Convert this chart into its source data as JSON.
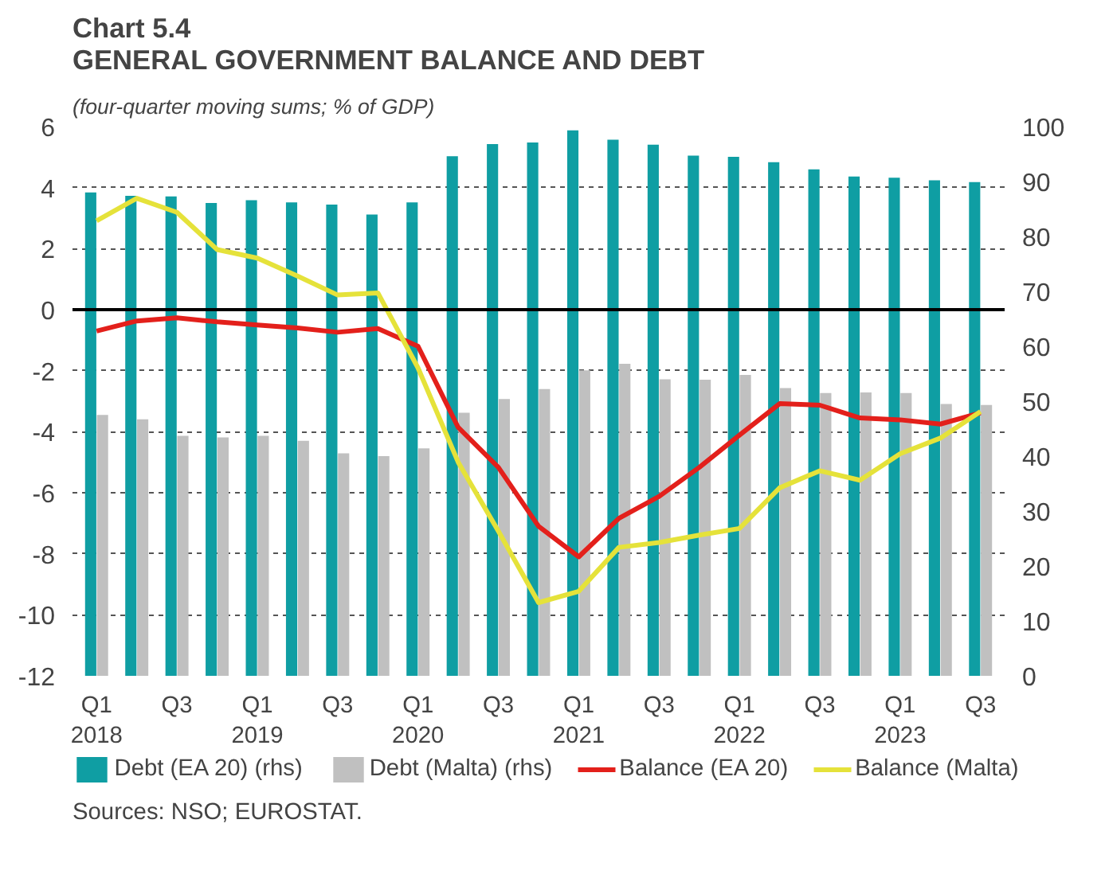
{
  "chart_data": {
    "type": "bar",
    "title": "Chart 5.4\nGENERAL GOVERNMENT BALANCE AND DEBT",
    "subtitle": "(four-quarter moving sums; % of GDP)",
    "categories": [
      "Q1\n2018",
      null,
      "Q3",
      null,
      "Q1\n2019",
      null,
      "Q3",
      null,
      "Q1\n2020",
      null,
      "Q3",
      null,
      "Q1\n2021",
      null,
      "Q3",
      null,
      "Q1\n2022",
      null,
      "Q3",
      null,
      "Q1\n2023",
      null,
      "Q3"
    ],
    "series": [
      {
        "name": "Debt (EA 20) (rhs)",
        "axis": "y2",
        "color": "#0f9ea3",
        "values": [
          88.0,
          87.4,
          87.3,
          86.1,
          86.6,
          86.2,
          85.8,
          84.0,
          86.2,
          94.6,
          96.8,
          97.1,
          99.3,
          97.6,
          96.7,
          94.7,
          94.5,
          93.5,
          92.2,
          90.9,
          90.7,
          90.2,
          89.9
        ]
      },
      {
        "name": "Debt (Malta) (rhs)",
        "axis": "y2",
        "color": "#c0c0c0",
        "values": [
          47.5,
          46.7,
          43.7,
          43.4,
          43.7,
          42.8,
          40.5,
          40.0,
          41.4,
          47.9,
          50.4,
          52.2,
          55.6,
          56.8,
          54.0,
          53.9,
          54.8,
          52.4,
          51.5,
          51.6,
          51.5,
          49.5,
          49.3
        ]
      },
      {
        "name": "Balance (EA 20)",
        "type": "line",
        "color": "#e3201b",
        "values": [
          -0.7,
          -0.37,
          -0.27,
          -0.4,
          -0.5,
          -0.6,
          -0.74,
          -0.62,
          -1.2,
          -3.86,
          -5.17,
          -7.1,
          -8.1,
          -6.84,
          -6.12,
          -5.17,
          -4.11,
          -3.08,
          -3.13,
          -3.55,
          -3.61,
          -3.75,
          -3.38
        ]
      },
      {
        "name": "Balance (Malta)",
        "type": "line",
        "color": "#e5e23a",
        "values": [
          2.91,
          3.65,
          3.19,
          1.97,
          1.69,
          1.1,
          0.48,
          0.55,
          -1.91,
          -5.0,
          -7.26,
          -9.6,
          -9.23,
          -7.79,
          -7.63,
          -7.39,
          -7.17,
          -5.84,
          -5.28,
          -5.59,
          -4.72,
          -4.21,
          -3.34
        ]
      }
    ],
    "ylim": [
      -12,
      6
    ],
    "yticks": [
      -12,
      -10,
      -8,
      -6,
      -4,
      -2,
      0,
      2,
      4,
      6
    ],
    "y2lim": [
      0,
      100
    ],
    "y2ticks": [
      0,
      10,
      20,
      30,
      40,
      50,
      60,
      70,
      80,
      90,
      100
    ],
    "ref_lines": [
      {
        "axis": "y",
        "value": 0,
        "color": "#000000"
      }
    ],
    "grid": "y",
    "legend": "bottom",
    "line_style": "solid",
    "annotations": [
      "Sources: NSO; EUROSTAT."
    ]
  }
}
